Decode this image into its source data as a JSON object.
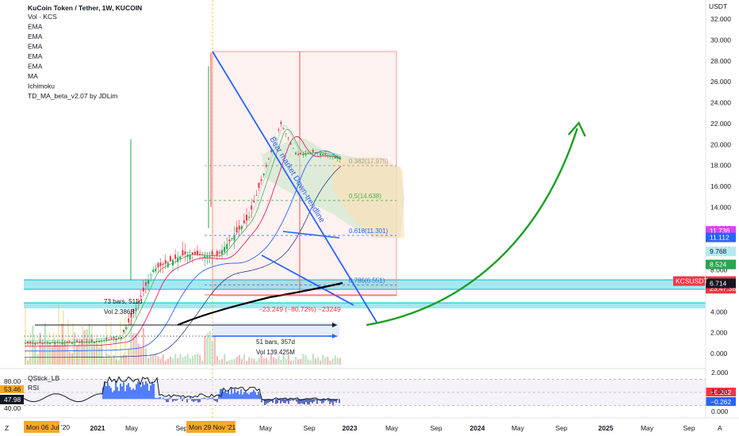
{
  "legend": {
    "title": "KuCoin Token / Tether, 1W, KUCOIN",
    "indicators": [
      "Vol · KCS",
      "EMA",
      "EMA",
      "EMA",
      "EMA",
      "EMA",
      "MA",
      "Ichimoku",
      "TD_MA_beta_v2.07 by JDLim"
    ]
  },
  "price_axis": {
    "unit": "USDT",
    "ticks": [
      "32.000",
      "30.000",
      "28.000",
      "26.000",
      "24.000",
      "22.000",
      "20.000",
      "18.000",
      "16.000",
      "14.000",
      "12.000",
      "10.000",
      "8.000",
      "6.000",
      "4.000",
      "2.000",
      "0.000"
    ],
    "tags": [
      {
        "text": "11.736",
        "color": "#e040fb",
        "value": 11.736
      },
      {
        "text": "11.112",
        "color": "#2962ff",
        "value": 11.112
      },
      {
        "text": "9.768",
        "color": "#b2ebf2",
        "value": 9.768
      },
      {
        "text": "8.524",
        "color": "#26a650",
        "value": 8.524
      },
      {
        "text": "6.936",
        "color": "#f23645",
        "value": 6.936
      },
      {
        "text": "23:47:38",
        "color": "#f23645",
        "value": 6.2
      },
      {
        "text": "6.714",
        "color": "#131722",
        "value": 6.714
      }
    ],
    "symbol_tag": "KCSUSDT"
  },
  "time_axis": {
    "labels": [
      "2021",
      "May",
      "Sep",
      "May",
      "Sep",
      "2023",
      "May",
      "Sep",
      "2024",
      "May",
      "Sep",
      "2025",
      "May",
      "Sep"
    ],
    "highlight_start": "Mon 06 Jul '20",
    "highlight_mid": "Mon 29 Nov '21",
    "left_glyph": "Z",
    "right_glyph": "A"
  },
  "annotations": {
    "trendline_label": "Bear market Down-trendline",
    "fib_levels": [
      {
        "label": "0.382(17.975)",
        "color": "#9e9e9e",
        "value": 17.975
      },
      {
        "label": "0.5(14.638)",
        "color": "#4caf50",
        "value": 14.638
      },
      {
        "label": "0.618(11.301)",
        "color": "#2962ff",
        "value": 11.301
      },
      {
        "label": "0.786(6.551)",
        "color": "#1976d2",
        "value": 6.551
      }
    ],
    "measure_change": "−23.249 (−80.72%) −23249",
    "range_bars": "51 bars, 357d",
    "range_vol": "Vol 139.425M",
    "left_info_1": "73 bars, 511d",
    "left_info_2": "Vol 2.386B"
  },
  "chart_data": [
    {
      "type": "line",
      "title": "KuCoin Token / Tether, 1W, KUCOIN",
      "ylabel": "USDT",
      "ylim": [
        0,
        32
      ],
      "series": [
        {
          "name": "KCSUSDT",
          "values": [
            {
              "x": "2020-07",
              "y": 1.0
            },
            {
              "x": "2020-11",
              "y": 1.1
            },
            {
              "x": "2021-01",
              "y": 1.5
            },
            {
              "x": "2021-02",
              "y": 4.5
            },
            {
              "x": "2021-03",
              "y": 8.0
            },
            {
              "x": "2021-05",
              "y": 9.5
            },
            {
              "x": "2021-07",
              "y": 9.3
            },
            {
              "x": "2021-09",
              "y": 13.0
            },
            {
              "x": "2021-11",
              "y": 22.0
            },
            {
              "x": "2021-12",
              "y": 19.0
            },
            {
              "x": "2022-01",
              "y": 19.3
            },
            {
              "x": "2022-03",
              "y": 18.6
            },
            {
              "x": "2022-05",
              "y": 12.0
            },
            {
              "x": "2022-06",
              "y": 9.0
            },
            {
              "x": "2022-08",
              "y": 9.8
            },
            {
              "x": "2022-10",
              "y": 9.3
            },
            {
              "x": "2022-11",
              "y": 6.9
            }
          ]
        }
      ]
    },
    {
      "type": "line",
      "title": "QStick_LB",
      "ylim": [
        -1,
        2
      ],
      "series": [
        {
          "name": "RSI",
          "values": [
            {
              "x": "2020-07",
              "y": 0.1
            },
            {
              "x": "2021-02",
              "y": 1.8
            },
            {
              "x": "2021-05",
              "y": 0.8
            },
            {
              "x": "2021-11",
              "y": 1.0
            },
            {
              "x": "2022-05",
              "y": -0.3
            },
            {
              "x": "2022-11",
              "y": -0.26
            }
          ]
        }
      ],
      "tags": [
        {
          "text": "80.00"
        },
        {
          "text": "53.46"
        },
        {
          "text": "47.98"
        },
        {
          "text": "40.00"
        },
        {
          "text": "−0.262",
          "color": "#f23645"
        },
        {
          "text": "−0.262",
          "color": "#2962ff"
        }
      ]
    }
  ],
  "lower_axis": {
    "ticks": [
      "2.000",
      "1.000",
      "0.000"
    ]
  },
  "lower_legend": {
    "name": "QStick_LB",
    "rsi": "RSI"
  }
}
